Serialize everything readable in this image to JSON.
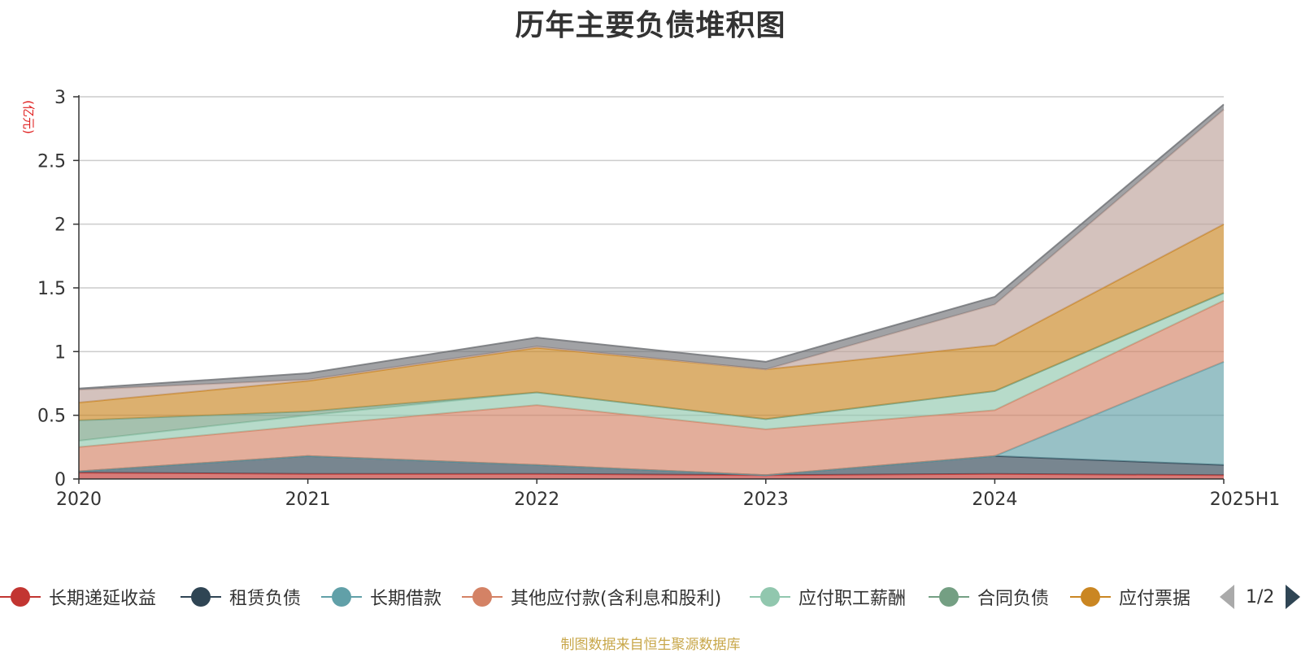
{
  "chart_data": {
    "type": "area",
    "stacked": true,
    "title": "历年主要负债堆积图",
    "ylabel": "(亿元)",
    "ylim": [
      0,
      3
    ],
    "yticks": [
      "0",
      "0.5",
      "1",
      "1.5",
      "2",
      "2.5",
      "3"
    ],
    "categories": [
      "2020",
      "2021",
      "2022",
      "2023",
      "2024",
      "2025H1"
    ],
    "grid": true,
    "legend_position": "bottom",
    "series": [
      {
        "name": "长期递延收益",
        "color": "#c23531",
        "values": [
          0.05,
          0.04,
          0.04,
          0.03,
          0.04,
          0.03
        ]
      },
      {
        "name": "租赁负债",
        "color": "#2f4554",
        "values": [
          0.01,
          0.14,
          0.07,
          0.0,
          0.14,
          0.08
        ]
      },
      {
        "name": "长期借款",
        "color": "#61a0a8",
        "values": [
          0.0,
          0.0,
          0.0,
          0.0,
          0.0,
          0.81
        ]
      },
      {
        "name": "其他应付款(含利息和股利)",
        "color": "#d48265",
        "values": [
          0.19,
          0.24,
          0.47,
          0.36,
          0.36,
          0.48
        ]
      },
      {
        "name": "应付职工薪酬",
        "color": "#91c7ae",
        "values": [
          0.05,
          0.08,
          0.1,
          0.08,
          0.15,
          0.06
        ]
      },
      {
        "name": "合同负债",
        "color": "#749f83",
        "values": [
          0.16,
          0.03,
          0.0,
          0.0,
          0.0,
          0.0
        ]
      },
      {
        "name": "应付票据",
        "color": "#ca8622",
        "values": [
          0.14,
          0.24,
          0.35,
          0.39,
          0.36,
          0.54
        ]
      },
      {
        "name": "",
        "color": "#bda29a",
        "values": [
          0.1,
          0.01,
          0.01,
          0.0,
          0.32,
          0.9
        ]
      },
      {
        "name": "",
        "color": "#6e7074",
        "values": [
          0.01,
          0.05,
          0.07,
          0.06,
          0.06,
          0.04
        ]
      }
    ]
  },
  "legend": {
    "items": [
      {
        "label": "长期递延收益",
        "color": "#c23531"
      },
      {
        "label": "租赁负债",
        "color": "#2f4554"
      },
      {
        "label": "长期借款",
        "color": "#61a0a8"
      },
      {
        "label": "其他应付款(含利息和股利)",
        "color": "#d48265"
      },
      {
        "label": "应付职工薪酬",
        "color": "#91c7ae"
      },
      {
        "label": "合同负债",
        "color": "#749f83"
      },
      {
        "label": "应付票据",
        "color": "#ca8622"
      }
    ],
    "page": "1/2"
  },
  "source": "制图数据来自恒生聚源数据库"
}
